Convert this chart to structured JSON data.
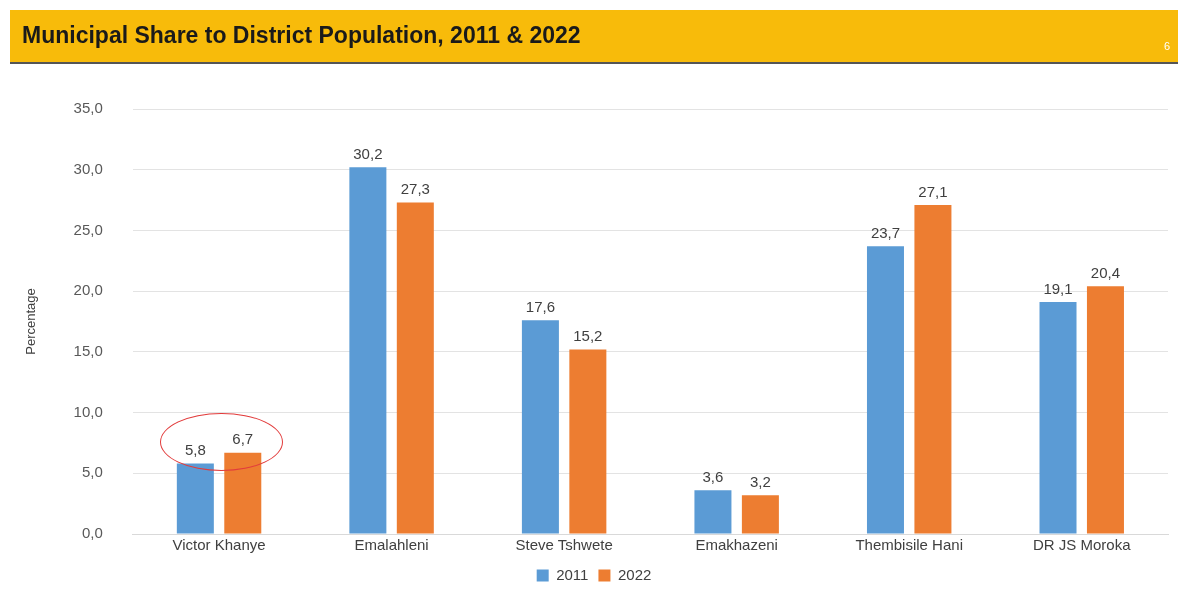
{
  "chart_data": {
    "type": "bar",
    "title": "Municipal Share to District Population, 2011 & 2022",
    "ylabel": "Percentage",
    "categories": [
      "Victor Khanye",
      "Emalahleni",
      "Steve Tshwete",
      "Emakhazeni",
      "Thembisile Hani",
      "DR JS Moroka"
    ],
    "series": [
      {
        "name": "2011",
        "color": "#5b9bd5",
        "values": [
          5.8,
          30.2,
          17.6,
          3.6,
          23.7,
          19.1
        ],
        "value_labels": [
          "5,8",
          "30,2",
          "17,6",
          "3,6",
          "23,7",
          "19,1"
        ]
      },
      {
        "name": "2022",
        "color": "#ed7d31",
        "values": [
          6.7,
          27.3,
          15.2,
          3.2,
          27.1,
          20.4
        ],
        "value_labels": [
          "6,7",
          "27,3",
          "15,2",
          "3,2",
          "27,1",
          "20,4"
        ]
      }
    ],
    "ylim": [
      0,
      35
    ],
    "yticks": [
      {
        "value": 0,
        "label": "0,0"
      },
      {
        "value": 5,
        "label": "5,0"
      },
      {
        "value": 10,
        "label": "10,0"
      },
      {
        "value": 15,
        "label": "15,0"
      },
      {
        "value": 20,
        "label": "20,0"
      },
      {
        "value": 25,
        "label": "25,0"
      },
      {
        "value": 30,
        "label": "30,0"
      },
      {
        "value": 35,
        "label": "35,0"
      }
    ],
    "grid": "y",
    "legend": "bottom",
    "annotations": [
      "6"
    ]
  }
}
